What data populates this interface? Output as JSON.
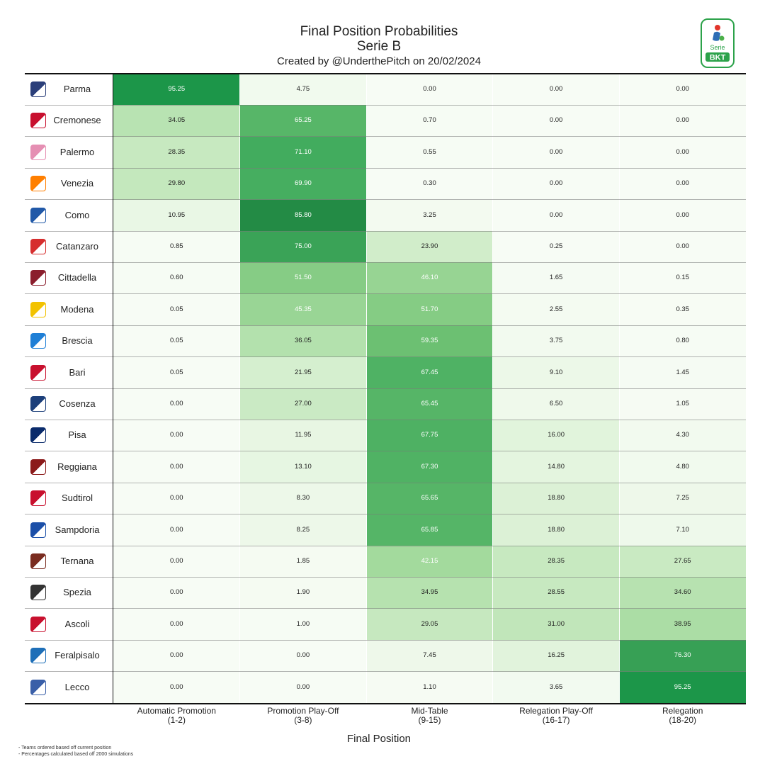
{
  "title_lines": [
    "Final Position Probabilities",
    "Serie B"
  ],
  "subtitle": "Created by @UnderthePitch on 20/02/2024",
  "logo": {
    "top_text": "Serie",
    "brand_text": "BKT",
    "icon": "serie-b-logo"
  },
  "footnotes": [
    "- Teams ordered based off current position",
    "- Percentages calculated based off 2000 simulations"
  ],
  "colors": {
    "low": "#f7fcf5",
    "high": "#189c4b",
    "text_dark": "#222222",
    "text_light": "#ffffff"
  },
  "chart_data": {
    "type": "heatmap",
    "title": "Final Position Probabilities",
    "subtitle": "Serie B",
    "xlabel": "Final Position",
    "ylabel": "",
    "columns": [
      {
        "label": "Automatic Promotion",
        "range": "(1-2)"
      },
      {
        "label": "Promotion Play-Off",
        "range": "(3-8)"
      },
      {
        "label": "Mid-Table",
        "range": "(9-15)"
      },
      {
        "label": "Relegation Play-Off",
        "range": "(16-17)"
      },
      {
        "label": "Relegation",
        "range": "(18-20)"
      }
    ],
    "teams": [
      "Parma",
      "Cremonese",
      "Palermo",
      "Venezia",
      "Como",
      "Catanzaro",
      "Cittadella",
      "Modena",
      "Brescia",
      "Bari",
      "Cosenza",
      "Pisa",
      "Reggiana",
      "Sudtirol",
      "Sampdoria",
      "Ternana",
      "Spezia",
      "Ascoli",
      "Feralpisalo",
      "Lecco"
    ],
    "values": [
      [
        95.25,
        4.75,
        0.0,
        0.0,
        0.0
      ],
      [
        34.05,
        65.25,
        0.7,
        0.0,
        0.0
      ],
      [
        28.35,
        71.1,
        0.55,
        0.0,
        0.0
      ],
      [
        29.8,
        69.9,
        0.3,
        0.0,
        0.0
      ],
      [
        10.95,
        85.8,
        3.25,
        0.0,
        0.0
      ],
      [
        0.85,
        75.0,
        23.9,
        0.25,
        0.0
      ],
      [
        0.6,
        51.5,
        46.1,
        1.65,
        0.15
      ],
      [
        0.05,
        45.35,
        51.7,
        2.55,
        0.35
      ],
      [
        0.05,
        36.05,
        59.35,
        3.75,
        0.8
      ],
      [
        0.05,
        21.95,
        67.45,
        9.1,
        1.45
      ],
      [
        0.0,
        27.0,
        65.45,
        6.5,
        1.05
      ],
      [
        0.0,
        11.95,
        67.75,
        16.0,
        4.3
      ],
      [
        0.0,
        13.1,
        67.3,
        14.8,
        4.8
      ],
      [
        0.0,
        8.3,
        65.65,
        18.8,
        7.25
      ],
      [
        0.0,
        8.25,
        65.85,
        18.8,
        7.1
      ],
      [
        0.0,
        1.85,
        42.15,
        28.35,
        27.65
      ],
      [
        0.0,
        1.9,
        34.95,
        28.55,
        34.6
      ],
      [
        0.0,
        1.0,
        29.05,
        31.0,
        38.95
      ],
      [
        0.0,
        0.0,
        7.45,
        16.25,
        76.3
      ],
      [
        0.0,
        0.0,
        1.1,
        3.65,
        95.25
      ]
    ],
    "value_range": [
      0,
      100
    ],
    "colorscale": "Greens"
  }
}
